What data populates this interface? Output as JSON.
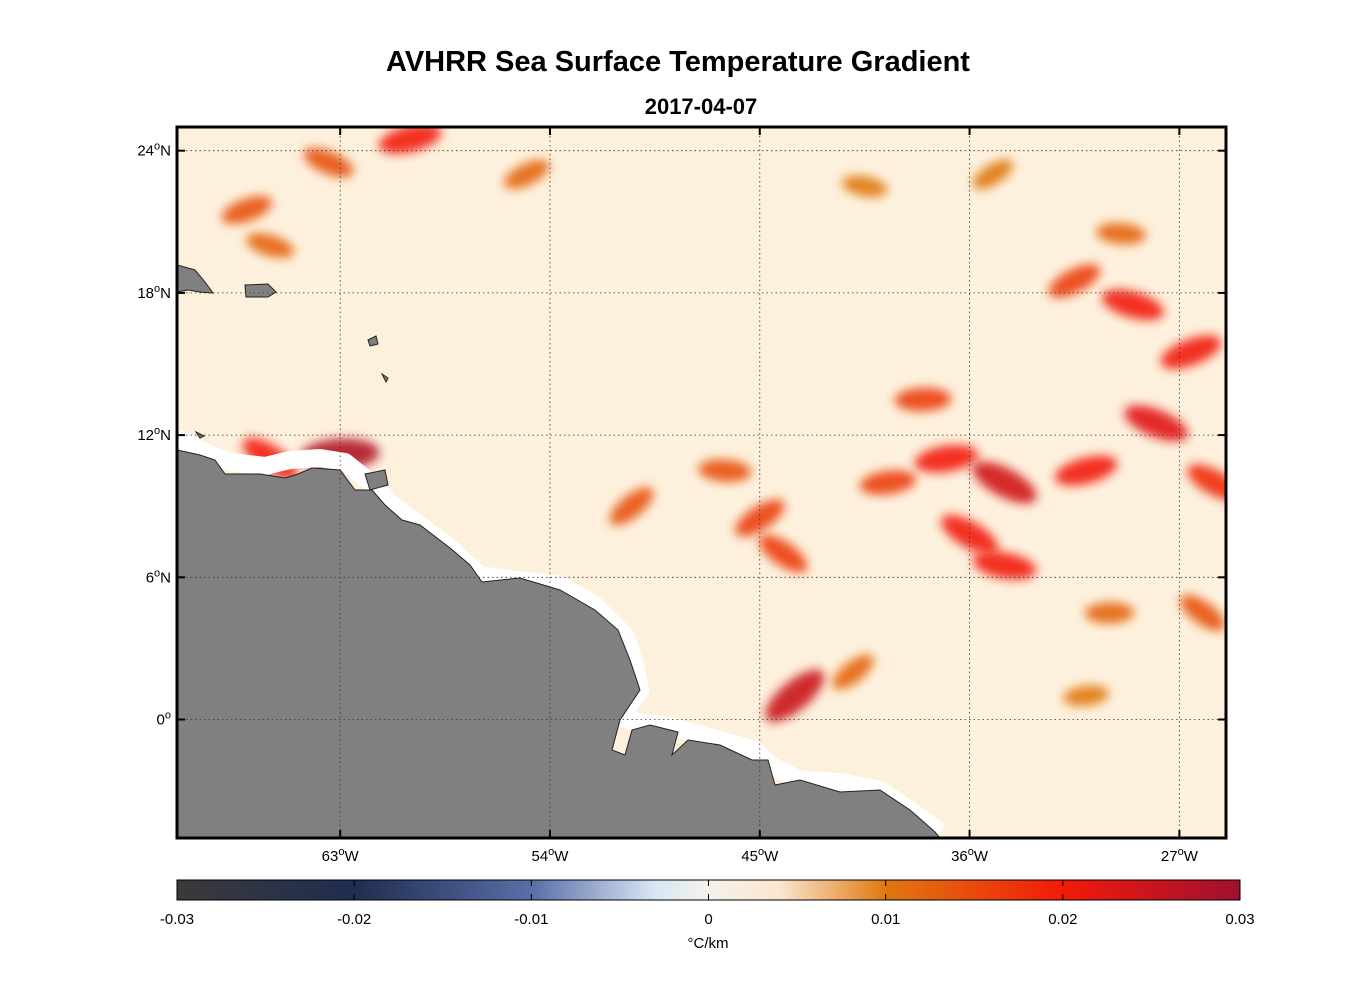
{
  "title": "AVHRR Sea Surface Temperature Gradient",
  "subtitle": "2017-04-07",
  "colors": {
    "land": "#808080",
    "ocean_background": "#fdf0dc",
    "coast_buffer": "#ffffff",
    "frame": "#000000"
  },
  "map": {
    "lon_ticks": [
      {
        "value": -63,
        "deg": "63",
        "hem": "W"
      },
      {
        "value": -54,
        "deg": "54",
        "hem": "W"
      },
      {
        "value": -45,
        "deg": "45",
        "hem": "W"
      },
      {
        "value": -36,
        "deg": "36",
        "hem": "W"
      },
      {
        "value": -27,
        "deg": "27",
        "hem": "W"
      }
    ],
    "lat_ticks": [
      {
        "value": 24,
        "deg": "24",
        "hem": "N"
      },
      {
        "value": 18,
        "deg": "18",
        "hem": "N"
      },
      {
        "value": 12,
        "deg": "12",
        "hem": "N"
      },
      {
        "value": 6,
        "deg": "6",
        "hem": "N"
      },
      {
        "value": 0,
        "deg": "0",
        "hem": ""
      }
    ],
    "lon_range": [
      -70,
      -25
    ],
    "lat_range": [
      -5,
      25
    ],
    "gridlines": "dotted"
  },
  "colorbar": {
    "label": "°C/km",
    "ticks": [
      "-0.03",
      "-0.02",
      "-0.01",
      "0",
      "0.01",
      "0.02",
      "0.03"
    ],
    "range": [
      -0.03,
      0.03
    ],
    "stops": [
      {
        "v": -0.03,
        "color": "#3a3a3a"
      },
      {
        "v": -0.02,
        "color": "#1f2d50"
      },
      {
        "v": -0.01,
        "color": "#5a6ea8"
      },
      {
        "v": -0.003,
        "color": "#d8e6f4"
      },
      {
        "v": 0.0,
        "color": "#f4f2ec"
      },
      {
        "v": 0.004,
        "color": "#fbe6cf"
      },
      {
        "v": 0.01,
        "color": "#e07810"
      },
      {
        "v": 0.02,
        "color": "#f21a0a"
      },
      {
        "v": 0.03,
        "color": "#a01030"
      }
    ]
  },
  "gradient_features": [
    {
      "lon": -43.5,
      "lat": 1.0,
      "strength": 0.025
    },
    {
      "lon": -63.0,
      "lat": 11.2,
      "strength": 0.028
    },
    {
      "lon": -66.0,
      "lat": 11.0,
      "strength": 0.02
    },
    {
      "lon": -37.0,
      "lat": 11.0,
      "strength": 0.02
    },
    {
      "lon": -34.5,
      "lat": 10.0,
      "strength": 0.024
    },
    {
      "lon": -31.0,
      "lat": 10.5,
      "strength": 0.02
    },
    {
      "lon": -28.0,
      "lat": 12.5,
      "strength": 0.022
    },
    {
      "lon": -26.5,
      "lat": 15.5,
      "strength": 0.02
    },
    {
      "lon": -29.0,
      "lat": 17.5,
      "strength": 0.02
    },
    {
      "lon": -31.5,
      "lat": 18.5,
      "strength": 0.016
    },
    {
      "lon": -34.5,
      "lat": 6.5,
      "strength": 0.02
    },
    {
      "lon": -45.0,
      "lat": 8.5,
      "strength": 0.016
    },
    {
      "lon": -46.5,
      "lat": 10.5,
      "strength": 0.014
    },
    {
      "lon": -50.5,
      "lat": 9.0,
      "strength": 0.014
    },
    {
      "lon": -38.0,
      "lat": 13.5,
      "strength": 0.016
    },
    {
      "lon": -44.0,
      "lat": 7.0,
      "strength": 0.016
    },
    {
      "lon": -39.5,
      "lat": 10.0,
      "strength": 0.016
    },
    {
      "lon": -25.5,
      "lat": 10.0,
      "strength": 0.018
    },
    {
      "lon": -60.0,
      "lat": 24.5,
      "strength": 0.02
    },
    {
      "lon": -63.5,
      "lat": 23.5,
      "strength": 0.014
    },
    {
      "lon": -67.0,
      "lat": 21.5,
      "strength": 0.014
    },
    {
      "lon": -66.0,
      "lat": 20.0,
      "strength": 0.012
    },
    {
      "lon": -55.0,
      "lat": 23.0,
      "strength": 0.012
    },
    {
      "lon": -40.5,
      "lat": 22.5,
      "strength": 0.01
    },
    {
      "lon": -35.0,
      "lat": 23.0,
      "strength": 0.01
    },
    {
      "lon": -29.5,
      "lat": 20.5,
      "strength": 0.012
    },
    {
      "lon": -41.0,
      "lat": 2.0,
      "strength": 0.012
    },
    {
      "lon": -30.0,
      "lat": 4.5,
      "strength": 0.012
    },
    {
      "lon": -26.0,
      "lat": 4.5,
      "strength": 0.014
    },
    {
      "lon": -31.0,
      "lat": 1.0,
      "strength": 0.01
    },
    {
      "lon": -36.0,
      "lat": 7.8,
      "strength": 0.02
    }
  ]
}
